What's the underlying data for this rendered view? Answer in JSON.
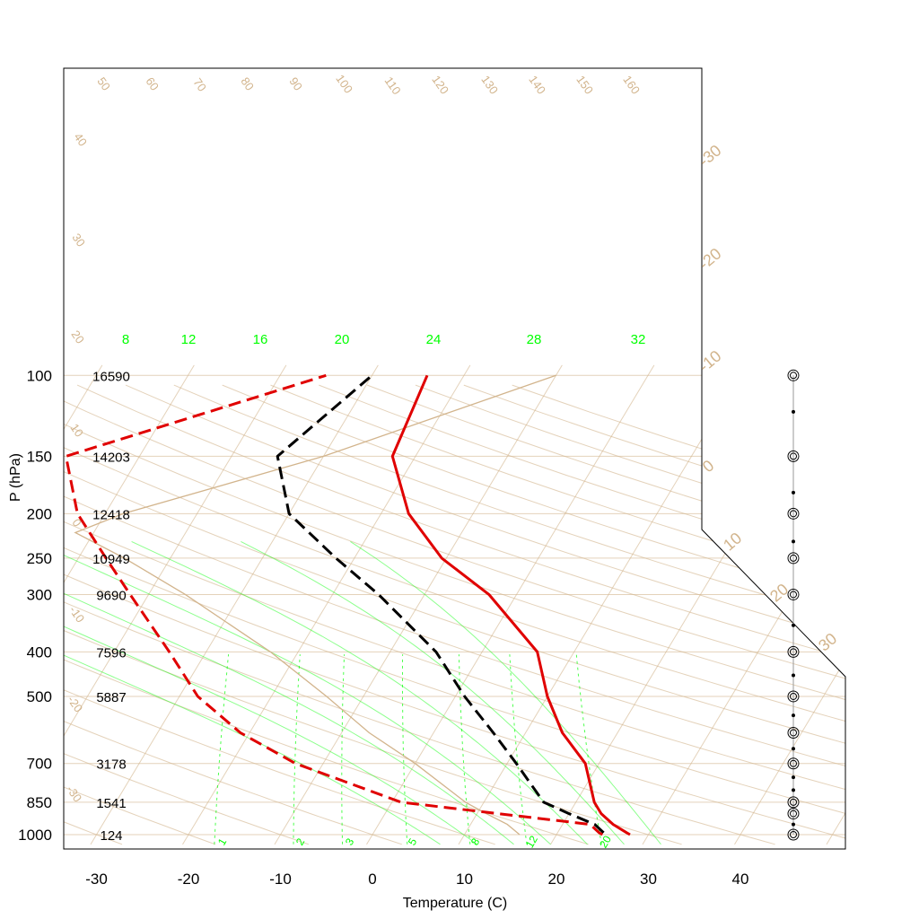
{
  "chart_data": {
    "type": "line",
    "title": "",
    "xlabel": "Temperature (C)",
    "ylabel": "P (hPa)",
    "x_ticks": [
      -30,
      -20,
      -10,
      0,
      10,
      20,
      30,
      40
    ],
    "pressure_levels": [
      100,
      150,
      200,
      250,
      300,
      400,
      500,
      700,
      850,
      1000
    ],
    "heights_m": [
      "16590",
      "14203",
      "12418",
      "10949",
      "9690",
      "7596",
      "5887",
      "3178",
      "1541",
      "124"
    ],
    "isotherm_labels": [
      "-30",
      "-20",
      "-10",
      "0",
      "10",
      "20",
      "30"
    ],
    "dry_adiabat_labels": [
      "50",
      "60",
      "70",
      "80",
      "90",
      "100",
      "110",
      "120",
      "130",
      "140",
      "150",
      "160"
    ],
    "dry_adiabat_left_labels": [
      "40",
      "30",
      "20",
      "10",
      "0",
      "-10",
      "-20",
      "-30"
    ],
    "moist_adiabat_labels": [
      "8",
      "12",
      "16",
      "20",
      "24",
      "28",
      "32"
    ],
    "mixing_ratio_labels": [
      "1",
      "2",
      "3",
      "5",
      "8",
      "12",
      "20"
    ],
    "series": [
      {
        "name": "",
        "style": "solid",
        "color": "#e00000",
        "points": [
          [
            28,
            1000
          ],
          [
            27.5,
            990
          ],
          [
            25.5,
            950
          ],
          [
            23.5,
            900
          ],
          [
            22,
            850
          ],
          [
            18.5,
            700
          ],
          [
            14,
            600
          ],
          [
            10,
            500
          ],
          [
            6,
            400
          ],
          [
            -3,
            300
          ],
          [
            -10.5,
            250
          ],
          [
            -17,
            200
          ],
          [
            -22.5,
            150
          ],
          [
            -24,
            100
          ]
        ]
      },
      {
        "name": "",
        "style": "dashed",
        "color": "#000000",
        "points": [
          [
            25,
            990
          ],
          [
            23.5,
            950
          ],
          [
            20,
            900
          ],
          [
            16.5,
            850
          ],
          [
            11,
            700
          ],
          [
            6.5,
            600
          ],
          [
            1,
            500
          ],
          [
            -5,
            400
          ],
          [
            -15,
            300
          ],
          [
            -22,
            250
          ],
          [
            -30,
            200
          ],
          [
            -35,
            150
          ],
          [
            -30,
            100
          ]
        ]
      },
      {
        "name": "",
        "style": "dashed",
        "color": "#e00000",
        "points": [
          [
            25,
            1000
          ],
          [
            24.5,
            990
          ],
          [
            23,
            950
          ],
          [
            1,
            850
          ],
          [
            -13,
            700
          ],
          [
            -21,
            600
          ],
          [
            -28,
            500
          ],
          [
            -34,
            400
          ],
          [
            -42,
            300
          ],
          [
            -47,
            250
          ],
          [
            -53,
            200
          ],
          [
            -58,
            150
          ],
          [
            -35,
            100
          ]
        ]
      }
    ],
    "parcel_line": {
      "color": "#d2b48c",
      "points": [
        [
          16,
          1000
        ],
        [
          14,
          950
        ],
        [
          11,
          900
        ],
        [
          8,
          850
        ],
        [
          0,
          700
        ],
        [
          -7,
          600
        ],
        [
          -14,
          500
        ],
        [
          -23,
          400
        ],
        [
          -36,
          300
        ],
        [
          -45,
          250
        ],
        [
          -52,
          220
        ],
        [
          -48,
          200
        ],
        [
          -30,
          150
        ],
        [
          -10,
          100
        ]
      ]
    },
    "wind_levels": [
      100,
      120,
      150,
      180,
      200,
      230,
      250,
      300,
      350,
      400,
      450,
      500,
      550,
      600,
      650,
      700,
      750,
      800,
      850,
      900,
      950,
      1000
    ]
  }
}
